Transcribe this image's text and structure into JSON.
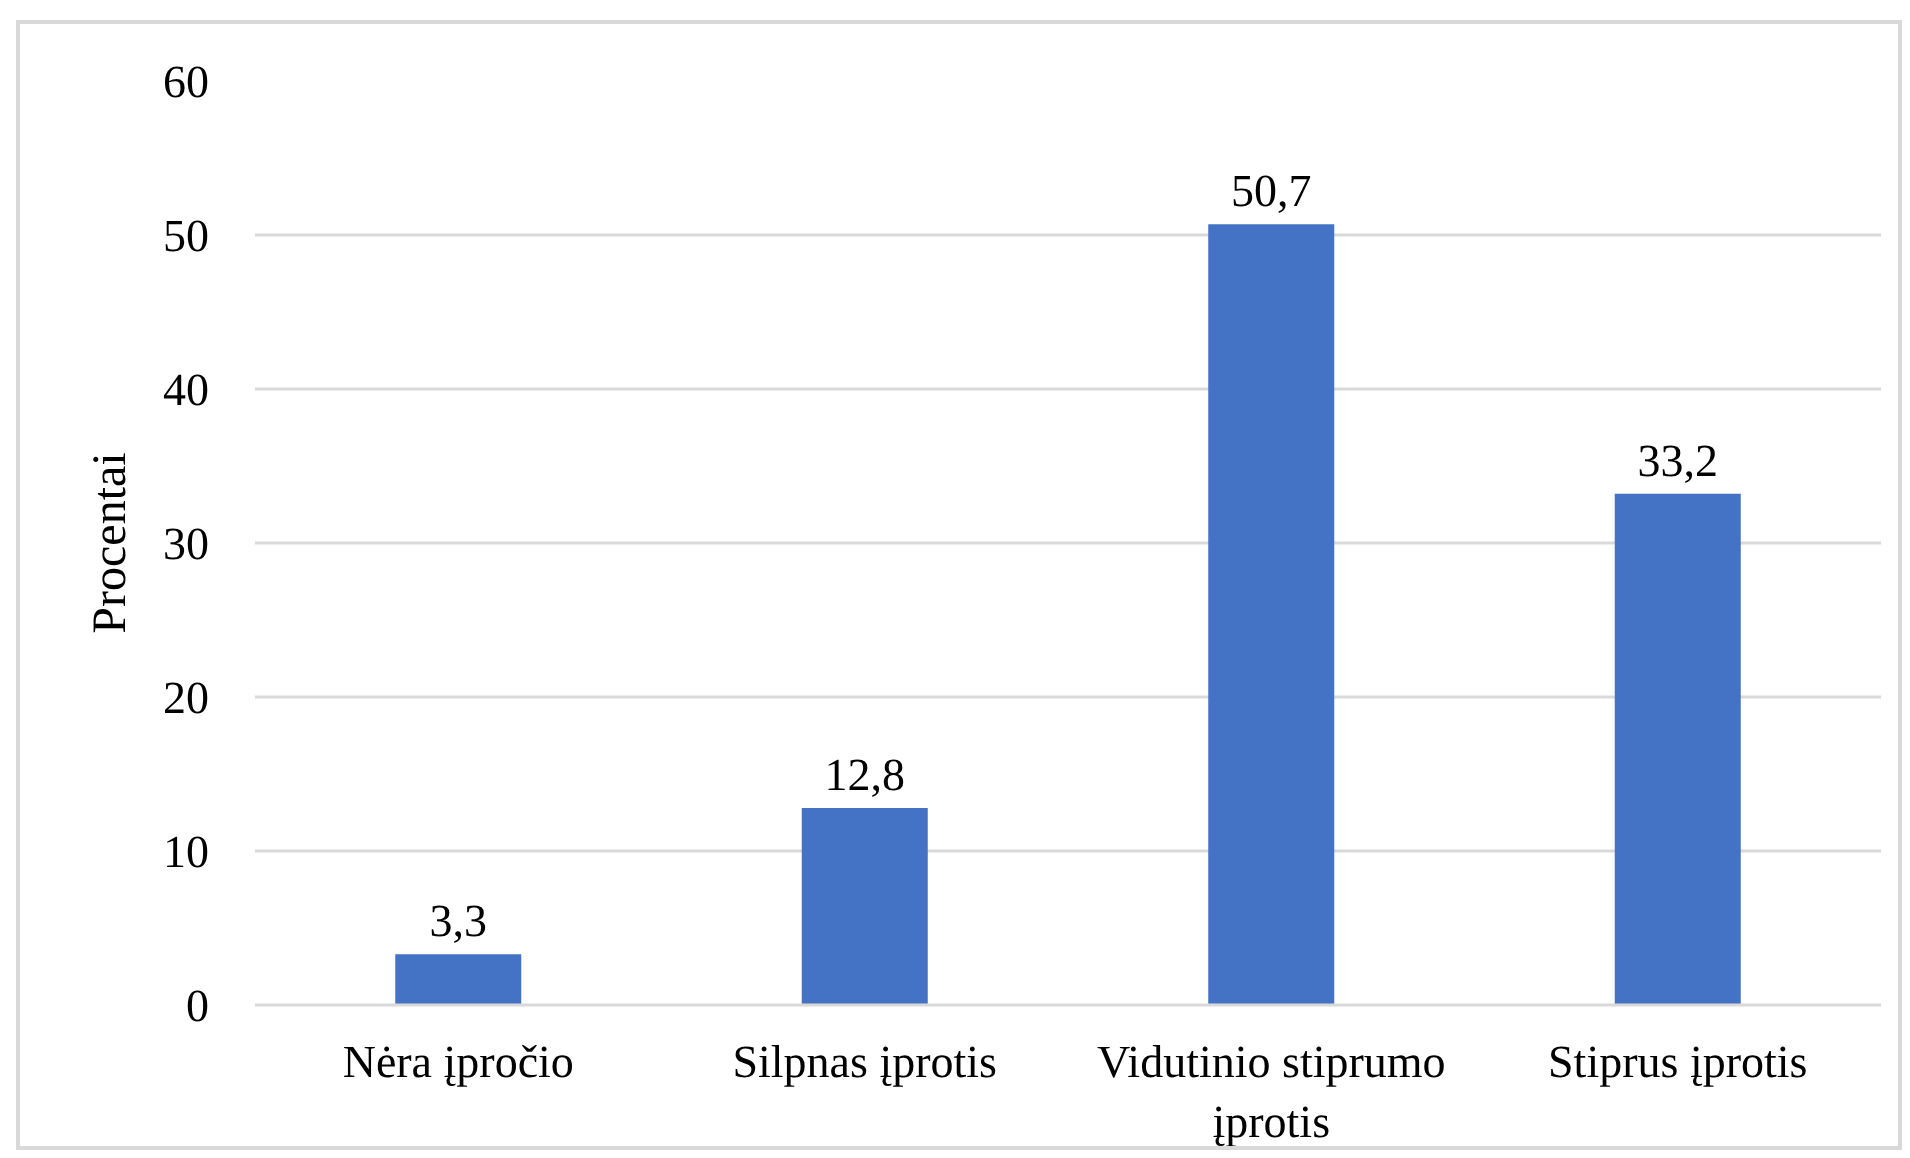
{
  "chart_data": {
    "type": "bar",
    "categories": [
      "Nėra įpročio",
      "Silpnas įprotis",
      "Vidutinio stiprumo įprotis",
      "Stiprus įprotis"
    ],
    "values": [
      3.3,
      12.8,
      50.7,
      33.2
    ],
    "value_labels": [
      "3,3",
      "12,8",
      "50,7",
      "33,2"
    ],
    "color": "#4472c4",
    "ylabel": "Procentai",
    "ylim": [
      0,
      60
    ],
    "yticks": [
      0,
      10,
      20,
      30,
      40,
      50,
      60
    ],
    "grid": "y"
  }
}
